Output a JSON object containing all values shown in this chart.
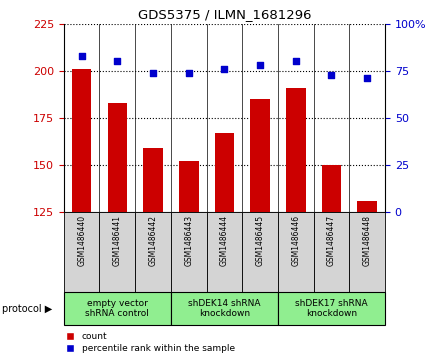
{
  "title": "GDS5375 / ILMN_1681296",
  "samples": [
    "GSM1486440",
    "GSM1486441",
    "GSM1486442",
    "GSM1486443",
    "GSM1486444",
    "GSM1486445",
    "GSM1486446",
    "GSM1486447",
    "GSM1486448"
  ],
  "counts": [
    201,
    183,
    159,
    152,
    167,
    185,
    191,
    150,
    131
  ],
  "percentiles": [
    83,
    80,
    74,
    74,
    76,
    78,
    80,
    73,
    71
  ],
  "ylim_left": [
    125,
    225
  ],
  "yticks_left": [
    125,
    150,
    175,
    200,
    225
  ],
  "ylim_right": [
    0,
    100
  ],
  "yticks_right": [
    0,
    25,
    50,
    75,
    100
  ],
  "protocols": [
    {
      "label": "empty vector\nshRNA control",
      "start": 0,
      "end": 3,
      "color": "#90EE90"
    },
    {
      "label": "shDEK14 shRNA\nknockdown",
      "start": 3,
      "end": 6,
      "color": "#90EE90"
    },
    {
      "label": "shDEK17 shRNA\nknockdown",
      "start": 6,
      "end": 9,
      "color": "#90EE90"
    }
  ],
  "bar_color": "#CC0000",
  "dot_color": "#0000CC",
  "axis_color_left": "#CC0000",
  "axis_color_right": "#0000CC",
  "sample_bg_color": "#d4d4d4",
  "legend_count_label": "count",
  "legend_percentile_label": "percentile rank within the sample",
  "protocol_label": "protocol ▶"
}
